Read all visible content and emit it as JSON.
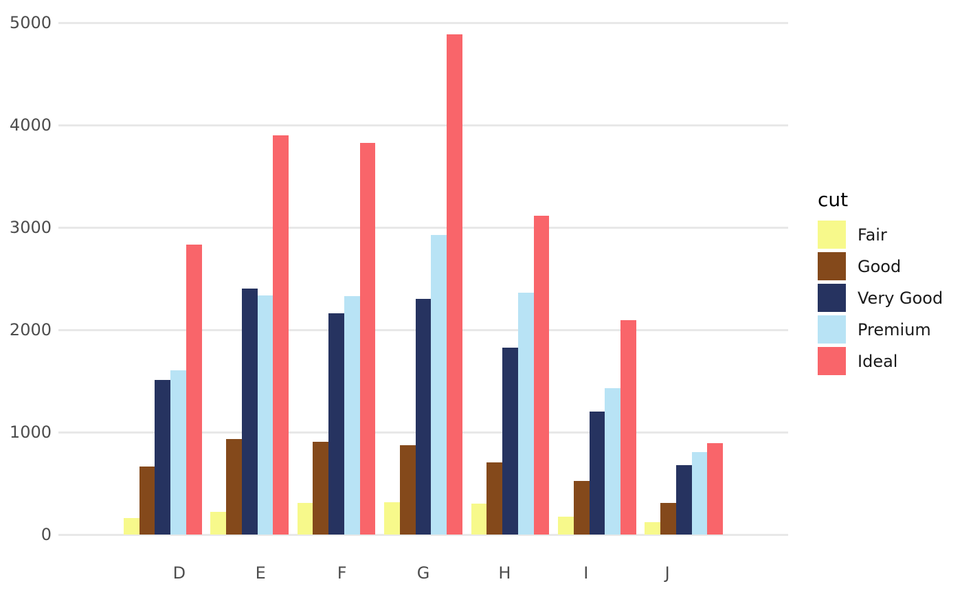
{
  "chart_data": {
    "type": "bar",
    "title": "",
    "xlabel": "",
    "ylabel": "",
    "categories": [
      "D",
      "E",
      "F",
      "G",
      "H",
      "I",
      "J"
    ],
    "series": [
      {
        "name": "Fair",
        "color": "#f7f98b",
        "values": [
          163,
          224,
          312,
          314,
          303,
          175,
          119
        ]
      },
      {
        "name": "Good",
        "color": "#84491b",
        "values": [
          662,
          933,
          909,
          871,
          702,
          522,
          307
        ]
      },
      {
        "name": "Very Good",
        "color": "#263360",
        "values": [
          1513,
          2400,
          2164,
          2299,
          1824,
          1204,
          678
        ]
      },
      {
        "name": "Premium",
        "color": "#b8e3f5",
        "values": [
          1603,
          2337,
          2331,
          2924,
          2360,
          1428,
          808
        ]
      },
      {
        "name": "Ideal",
        "color": "#f9656a",
        "values": [
          2834,
          3903,
          3826,
          4884,
          3115,
          2093,
          896
        ]
      }
    ],
    "ylim": [
      0,
      5128
    ],
    "yticks": [
      0,
      1000,
      2000,
      3000,
      4000,
      5000
    ],
    "grid": true,
    "bar_group_fraction": 0.9,
    "legend": {
      "title": "cut",
      "position": "right",
      "entries": [
        "Fair",
        "Good",
        "Very Good",
        "Premium",
        "Ideal"
      ]
    }
  },
  "colors": {
    "background": "#ffffff",
    "gridline": "#e8e8e8",
    "axis_text": "#4d4d4d",
    "legend_text": "#1a1a1a",
    "legend_title": "#000000"
  }
}
